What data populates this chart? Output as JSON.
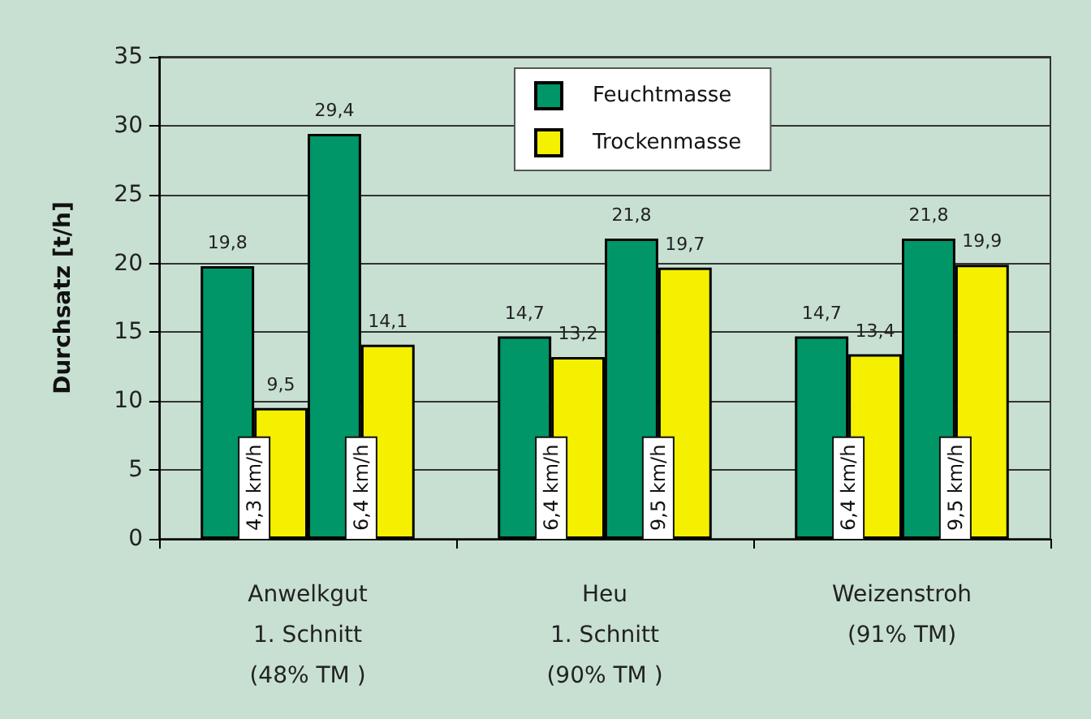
{
  "chart_data": {
    "type": "bar",
    "ylabel": "Durchsatz [t/h]",
    "categories": [
      "Anwelkgut\n1. Schnitt\n(48% TM )",
      "Heu\n1. Schnitt\n(90% TM )",
      "Weizenstroh\n(91% TM)"
    ],
    "series": [
      {
        "name": "Feuchtmasse",
        "color": "#009668",
        "values": [
          19.8,
          14.7,
          14.7
        ],
        "value_labels": [
          "19,8",
          "14,7",
          "14,7"
        ]
      },
      {
        "name": "Trockenmasse",
        "color": "#f5f000",
        "values": [
          9.5,
          13.2,
          13.4
        ],
        "value_labels": [
          "9,5",
          "13,2",
          "13,4"
        ]
      },
      {
        "color": "#009668",
        "values": [
          29.4,
          21.8,
          21.8
        ],
        "value_labels": [
          "29,4",
          "21,8",
          "21,8"
        ]
      },
      {
        "color": "#f5f000",
        "values": [
          14.1,
          19.7,
          19.9
        ],
        "value_labels": [
          "14,1",
          "19,7",
          "19,9"
        ]
      }
    ],
    "annotations": [
      "4,3 km/h",
      "6,4 km/h",
      "6,4 km/h",
      "9,5 km/h",
      "6,4 km/h",
      "9,5 km/h"
    ],
    "ylim": [
      0,
      35
    ],
    "yticks": [
      0,
      5,
      10,
      15,
      20,
      25,
      30,
      35
    ],
    "grid": "y",
    "legend": "top"
  }
}
